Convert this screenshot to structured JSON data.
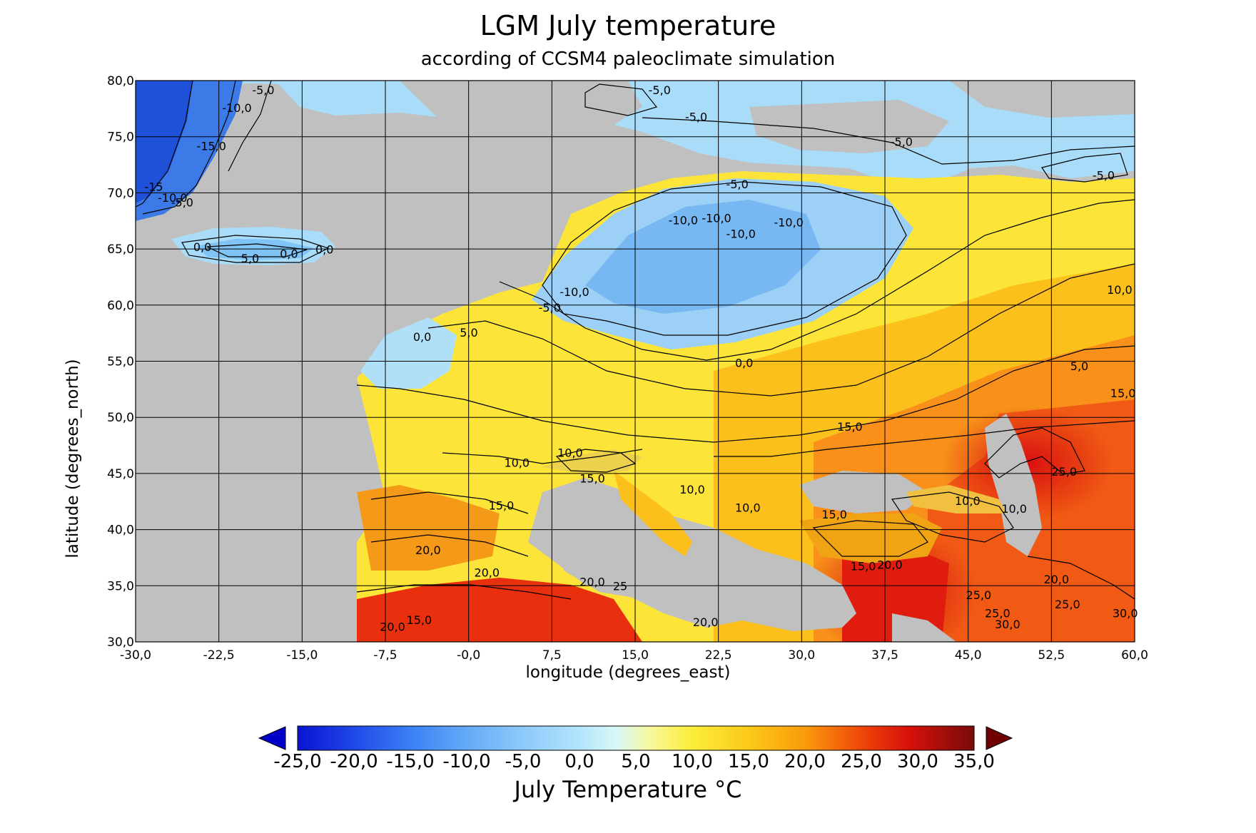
{
  "title": "LGM July temperature",
  "subtitle": "according of CCSM4 paleoclimate simulation",
  "map": {
    "xlabel": "longitude (degrees_east)",
    "ylabel": "latitude (degrees_north)",
    "lon_range": [
      -30,
      60
    ],
    "lat_range": [
      30,
      80
    ],
    "lon_ticks": [
      "-30,0",
      "-22,5",
      "-15,0",
      "-7,5",
      "-0,0",
      "7,5",
      "15,0",
      "22,5",
      "30,0",
      "37,5",
      "45,0",
      "52,5",
      "60,0"
    ],
    "lat_ticks": [
      "30,0",
      "35,0",
      "40,0",
      "45,0",
      "50,0",
      "55,0",
      "60,0",
      "65,0",
      "70,0",
      "75,0",
      "80,0"
    ],
    "grid": true,
    "land_ice_color": "#c0c0c0",
    "contour_labels": [
      {
        "text": "-5,0",
        "lon": -19.5,
        "lat": 78.8
      },
      {
        "text": "-10,0",
        "lon": -22.2,
        "lat": 77.2
      },
      {
        "text": "-15,0",
        "lon": -24.5,
        "lat": 73.8
      },
      {
        "text": "-10,0",
        "lon": -28.0,
        "lat": 69.2
      },
      {
        "text": "-5,0",
        "lon": -26.8,
        "lat": 68.8
      },
      {
        "text": "-15",
        "lon": -29.2,
        "lat": 70.2
      },
      {
        "text": "0,0",
        "lon": -24.8,
        "lat": 64.8
      },
      {
        "text": "5,0",
        "lon": -20.5,
        "lat": 63.8
      },
      {
        "text": "0,0",
        "lon": -17.0,
        "lat": 64.2
      },
      {
        "text": "0,0",
        "lon": -13.8,
        "lat": 64.6
      },
      {
        "text": "-5,0",
        "lon": 16.2,
        "lat": 78.8
      },
      {
        "text": "-5,0",
        "lon": 19.5,
        "lat": 76.4
      },
      {
        "text": "-5,0",
        "lon": 38.0,
        "lat": 74.2
      },
      {
        "text": "-5,0",
        "lon": 56.2,
        "lat": 71.2
      },
      {
        "text": "-5,0",
        "lon": 23.2,
        "lat": 70.4
      },
      {
        "text": "-10,0",
        "lon": 18.0,
        "lat": 67.2
      },
      {
        "text": "-10,0",
        "lon": 21.0,
        "lat": 67.4
      },
      {
        "text": "-10,0",
        "lon": 23.2,
        "lat": 66.0
      },
      {
        "text": "-10,0",
        "lon": 27.5,
        "lat": 67.0
      },
      {
        "text": "-5,0",
        "lon": 6.3,
        "lat": 59.4
      },
      {
        "text": "-10,0",
        "lon": 8.2,
        "lat": 60.8
      },
      {
        "text": "0,0",
        "lon": -5.0,
        "lat": 56.8
      },
      {
        "text": "5,0",
        "lon": -0.8,
        "lat": 57.2
      },
      {
        "text": "0,0",
        "lon": 24.0,
        "lat": 54.5
      },
      {
        "text": "10,0",
        "lon": 57.5,
        "lat": 61.0
      },
      {
        "text": "5,0",
        "lon": 54.2,
        "lat": 54.2
      },
      {
        "text": "15,0",
        "lon": 57.8,
        "lat": 51.8
      },
      {
        "text": "15,0",
        "lon": 33.2,
        "lat": 48.8
      },
      {
        "text": "25,0",
        "lon": 52.5,
        "lat": 44.8
      },
      {
        "text": "10,0",
        "lon": 8.0,
        "lat": 46.5
      },
      {
        "text": "10,0",
        "lon": 3.2,
        "lat": 45.6
      },
      {
        "text": "15,0",
        "lon": 10.0,
        "lat": 44.2
      },
      {
        "text": "10,0",
        "lon": 19.0,
        "lat": 43.2
      },
      {
        "text": "15,0",
        "lon": 1.8,
        "lat": 41.8
      },
      {
        "text": "10,0",
        "lon": 24.0,
        "lat": 41.6
      },
      {
        "text": "15,0",
        "lon": 31.8,
        "lat": 41.0
      },
      {
        "text": "10,0",
        "lon": 43.8,
        "lat": 42.2
      },
      {
        "text": "10,0",
        "lon": 48.0,
        "lat": 41.5
      },
      {
        "text": "20,0",
        "lon": -4.8,
        "lat": 37.8
      },
      {
        "text": "20,0",
        "lon": 0.5,
        "lat": 35.8
      },
      {
        "text": "20,0",
        "lon": 10.0,
        "lat": 35.0
      },
      {
        "text": "25",
        "lon": 13.0,
        "lat": 34.6
      },
      {
        "text": "15,0",
        "lon": 34.4,
        "lat": 36.4
      },
      {
        "text": "20,0",
        "lon": 36.8,
        "lat": 36.5
      },
      {
        "text": "20,0",
        "lon": 51.8,
        "lat": 35.2
      },
      {
        "text": "25,0",
        "lon": 44.8,
        "lat": 33.8
      },
      {
        "text": "25,0",
        "lon": 52.8,
        "lat": 33.0
      },
      {
        "text": "25,0",
        "lon": 46.5,
        "lat": 32.2
      },
      {
        "text": "30,0",
        "lon": 47.4,
        "lat": 31.2
      },
      {
        "text": "30,0",
        "lon": 58.0,
        "lat": 32.2
      },
      {
        "text": "20,0",
        "lon": 20.2,
        "lat": 31.4
      },
      {
        "text": "20,0",
        "lon": -8.0,
        "lat": 31.0
      },
      {
        "text": "15,0",
        "lon": -5.6,
        "lat": 31.6
      }
    ]
  },
  "colorbar": {
    "title": "July Temperature °C",
    "min": -25,
    "max": 35,
    "tick_labels": [
      "-25,0",
      "-20,0",
      "-15,0",
      "-10,0",
      "-5,0",
      "0,0",
      "5,0",
      "10,0",
      "15,0",
      "20,0",
      "25,0",
      "30,0",
      "35,0"
    ],
    "extend": "both",
    "low_color": "#0000c8",
    "high_color": "#6e0000"
  }
}
